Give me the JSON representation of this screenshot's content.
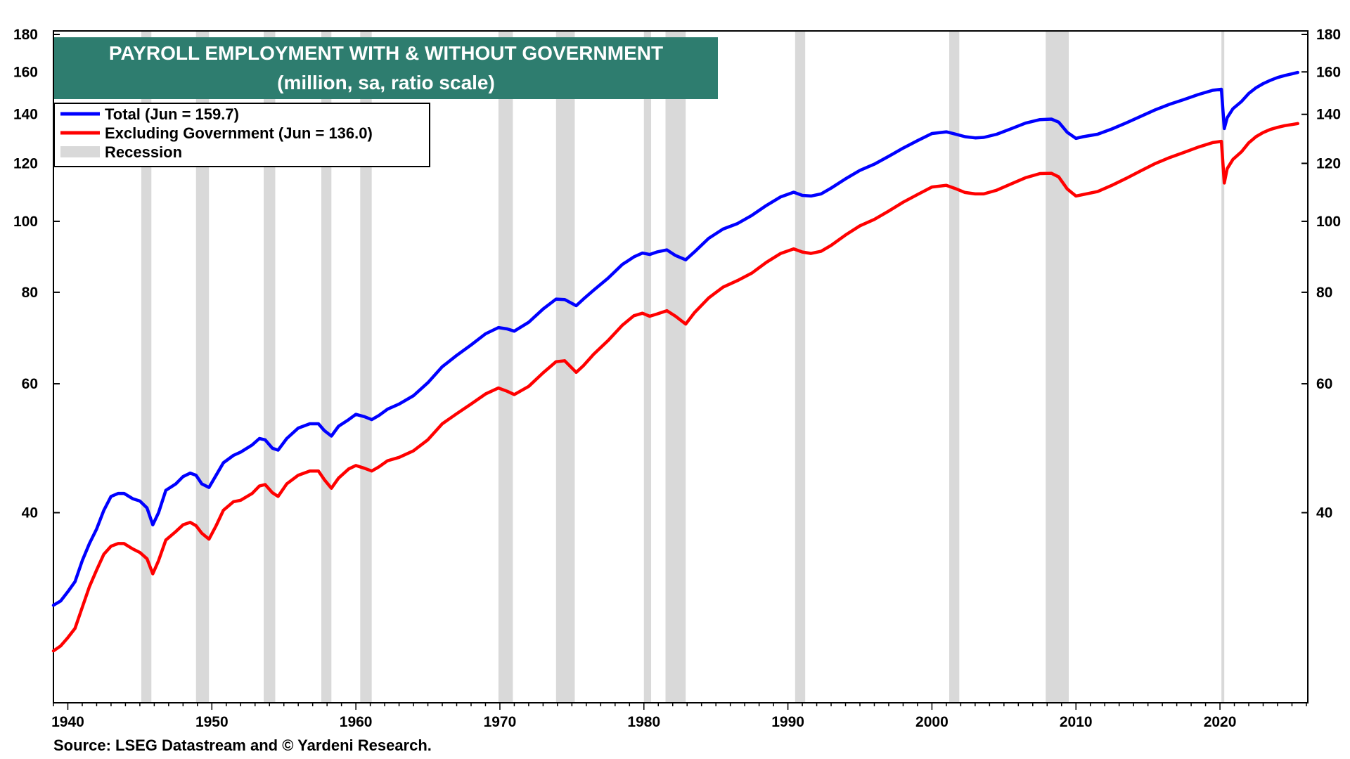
{
  "chart_data": {
    "type": "line",
    "title": "PAYROLL EMPLOYMENT WITH & WITHOUT GOVERNMENT",
    "subtitle": "(million, sa, ratio scale)",
    "source": "Source: LSEG Datastream and © Yardeni Research.",
    "y_scale": "log",
    "ylim": [
      22,
      182
    ],
    "xlim": [
      1939.0,
      2026.1
    ],
    "y_ticks": [
      40,
      60,
      80,
      100,
      120,
      140,
      160,
      180
    ],
    "x_ticks": [
      1940,
      1950,
      1960,
      1970,
      1980,
      1990,
      2000,
      2010,
      2020
    ],
    "grid": false,
    "dual_y_axis": true,
    "legend_position": "top-left",
    "colors": {
      "title_bg": "#2e7d6f",
      "total": "#0000ff",
      "excluding_government": "#ff0000",
      "recession": "#d9d9d9"
    },
    "legend": [
      {
        "label": "Total (Jun = 159.7)",
        "color": "#0000ff",
        "kind": "line"
      },
      {
        "label": "Excluding Government (Jun = 136.0)",
        "color": "#ff0000",
        "kind": "line"
      },
      {
        "label": "Recession",
        "color": "#d9d9d9",
        "kind": "box"
      }
    ],
    "recessions": [
      [
        1945.1,
        1945.8
      ],
      [
        1948.9,
        1949.8
      ],
      [
        1953.6,
        1954.4
      ],
      [
        1957.6,
        1958.3
      ],
      [
        1960.3,
        1961.1
      ],
      [
        1969.9,
        1970.9
      ],
      [
        1973.9,
        1975.2
      ],
      [
        1980.0,
        1980.5
      ],
      [
        1981.5,
        1982.9
      ],
      [
        1990.5,
        1991.2
      ],
      [
        2001.2,
        2001.9
      ],
      [
        2007.9,
        2009.5
      ],
      [
        2020.1,
        2020.3
      ]
    ],
    "series": [
      {
        "name": "Total (Jun = 159.7)",
        "color": "#0000ff",
        "x": [
          1939.0,
          1939.5,
          1940.0,
          1940.5,
          1941.0,
          1941.5,
          1942.0,
          1942.5,
          1943.0,
          1943.5,
          1943.9,
          1944.5,
          1945.0,
          1945.5,
          1945.9,
          1946.3,
          1946.8,
          1947.5,
          1948.0,
          1948.5,
          1948.9,
          1949.3,
          1949.8,
          1950.3,
          1950.8,
          1951.5,
          1952.0,
          1952.8,
          1953.3,
          1953.7,
          1954.2,
          1954.6,
          1955.2,
          1956.0,
          1956.8,
          1957.4,
          1957.8,
          1958.3,
          1958.8,
          1959.5,
          1960.0,
          1960.6,
          1961.1,
          1961.6,
          1962.2,
          1963.0,
          1964.0,
          1965.0,
          1966.0,
          1967.0,
          1968.0,
          1969.0,
          1969.9,
          1970.5,
          1971.0,
          1972.0,
          1973.0,
          1973.9,
          1974.5,
          1975.3,
          1975.8,
          1976.5,
          1977.5,
          1978.5,
          1979.3,
          1979.9,
          1980.4,
          1980.9,
          1981.6,
          1982.2,
          1982.9,
          1983.5,
          1984.5,
          1985.5,
          1986.5,
          1987.5,
          1988.5,
          1989.5,
          1990.4,
          1991.0,
          1991.6,
          1992.3,
          1993.0,
          1994.0,
          1995.0,
          1996.0,
          1997.0,
          1998.0,
          1999.0,
          2000.0,
          2001.0,
          2001.6,
          2002.3,
          2003.0,
          2003.6,
          2004.5,
          2005.5,
          2006.5,
          2007.5,
          2008.3,
          2008.8,
          2009.4,
          2010.0,
          2010.5,
          2011.5,
          2012.5,
          2013.5,
          2014.5,
          2015.5,
          2016.5,
          2017.5,
          2018.5,
          2019.5,
          2020.1,
          2020.3,
          2020.5,
          2020.9,
          2021.5,
          2022.0,
          2022.5,
          2023.0,
          2023.5,
          2024.0,
          2024.5,
          2025.0,
          2025.4
        ],
        "y": [
          29.9,
          30.3,
          31.2,
          32.2,
          34.4,
          36.3,
          38.0,
          40.3,
          42.1,
          42.5,
          42.5,
          41.8,
          41.5,
          40.6,
          38.5,
          40.0,
          42.9,
          43.8,
          44.8,
          45.3,
          45.0,
          43.8,
          43.3,
          45.0,
          46.8,
          47.9,
          48.4,
          49.5,
          50.5,
          50.3,
          49.0,
          48.7,
          50.5,
          52.2,
          52.9,
          52.9,
          51.8,
          50.9,
          52.5,
          53.6,
          54.5,
          54.1,
          53.6,
          54.3,
          55.4,
          56.3,
          57.8,
          60.2,
          63.3,
          65.6,
          67.8,
          70.2,
          71.6,
          71.3,
          70.8,
          72.8,
          75.9,
          78.3,
          78.2,
          76.7,
          78.3,
          80.5,
          83.6,
          87.3,
          89.4,
          90.5,
          90.1,
          90.8,
          91.4,
          89.8,
          88.6,
          90.8,
          94.8,
          97.6,
          99.3,
          101.9,
          105.1,
          108.0,
          109.6,
          108.5,
          108.3,
          109.0,
          111.0,
          114.3,
          117.4,
          119.7,
          122.7,
          125.9,
          128.9,
          131.8,
          132.5,
          131.6,
          130.5,
          130.0,
          130.2,
          131.5,
          133.8,
          136.2,
          137.7,
          137.9,
          136.6,
          132.3,
          129.8,
          130.5,
          131.5,
          133.7,
          136.3,
          139.1,
          142.0,
          144.5,
          146.7,
          149.0,
          151.0,
          151.5,
          133.9,
          138.5,
          142.5,
          145.8,
          149.5,
          152.2,
          154.2,
          155.8,
          157.2,
          158.2,
          159.0,
          159.7
        ]
      },
      {
        "name": "Excluding Government (Jun = 136.0)",
        "color": "#ff0000",
        "x": [
          1939.0,
          1939.5,
          1940.0,
          1940.5,
          1941.0,
          1941.5,
          1942.0,
          1942.5,
          1943.0,
          1943.5,
          1943.9,
          1944.5,
          1945.0,
          1945.5,
          1945.9,
          1946.3,
          1946.8,
          1947.5,
          1948.0,
          1948.5,
          1948.9,
          1949.3,
          1949.8,
          1950.3,
          1950.8,
          1951.5,
          1952.0,
          1952.8,
          1953.3,
          1953.7,
          1954.2,
          1954.6,
          1955.2,
          1956.0,
          1956.8,
          1957.4,
          1957.8,
          1958.3,
          1958.8,
          1959.5,
          1960.0,
          1960.6,
          1961.1,
          1961.6,
          1962.2,
          1963.0,
          1964.0,
          1965.0,
          1966.0,
          1967.0,
          1968.0,
          1969.0,
          1969.9,
          1970.5,
          1971.0,
          1972.0,
          1973.0,
          1973.9,
          1974.5,
          1975.3,
          1975.8,
          1976.5,
          1977.5,
          1978.5,
          1979.3,
          1979.9,
          1980.4,
          1980.9,
          1981.6,
          1982.2,
          1982.9,
          1983.5,
          1984.5,
          1985.5,
          1986.5,
          1987.5,
          1988.5,
          1989.5,
          1990.4,
          1991.0,
          1991.6,
          1992.3,
          1993.0,
          1994.0,
          1995.0,
          1996.0,
          1997.0,
          1998.0,
          1999.0,
          2000.0,
          2001.0,
          2001.6,
          2002.3,
          2003.0,
          2003.6,
          2004.5,
          2005.5,
          2006.5,
          2007.5,
          2008.3,
          2008.8,
          2009.4,
          2010.0,
          2010.5,
          2011.5,
          2012.5,
          2013.5,
          2014.5,
          2015.5,
          2016.5,
          2017.5,
          2018.5,
          2019.5,
          2020.1,
          2020.3,
          2020.5,
          2020.9,
          2021.5,
          2022.0,
          2022.5,
          2023.0,
          2023.5,
          2024.0,
          2024.5,
          2025.0,
          2025.4
        ],
        "y": [
          25.9,
          26.3,
          27.0,
          27.8,
          29.7,
          31.7,
          33.4,
          35.1,
          36.0,
          36.3,
          36.3,
          35.7,
          35.3,
          34.6,
          33.0,
          34.4,
          36.7,
          37.7,
          38.5,
          38.8,
          38.4,
          37.5,
          36.8,
          38.4,
          40.3,
          41.4,
          41.6,
          42.5,
          43.5,
          43.7,
          42.6,
          42.1,
          43.8,
          45.0,
          45.6,
          45.6,
          44.4,
          43.2,
          44.6,
          45.9,
          46.4,
          46.0,
          45.6,
          46.2,
          47.1,
          47.6,
          48.6,
          50.3,
          52.9,
          54.6,
          56.3,
          58.1,
          59.2,
          58.6,
          58.0,
          59.5,
          62.1,
          64.3,
          64.5,
          62.2,
          63.5,
          65.8,
          68.7,
          72.1,
          74.3,
          74.9,
          74.2,
          74.7,
          75.5,
          74.2,
          72.4,
          75.0,
          78.6,
          81.3,
          83.0,
          85.0,
          87.9,
          90.4,
          91.7,
          90.8,
          90.4,
          91.0,
          92.7,
          95.8,
          98.6,
          100.6,
          103.3,
          106.2,
          108.8,
          111.4,
          112.0,
          110.9,
          109.5,
          109.0,
          109.0,
          110.3,
          112.5,
          114.7,
          116.2,
          116.3,
          115.0,
          110.7,
          108.3,
          108.8,
          109.8,
          112.0,
          114.5,
          117.2,
          119.9,
          122.2,
          124.2,
          126.3,
          128.1,
          128.6,
          112.8,
          118.0,
          121.5,
          124.5,
          128.0,
          130.5,
          132.2,
          133.5,
          134.4,
          135.1,
          135.6,
          136.0
        ]
      }
    ]
  }
}
